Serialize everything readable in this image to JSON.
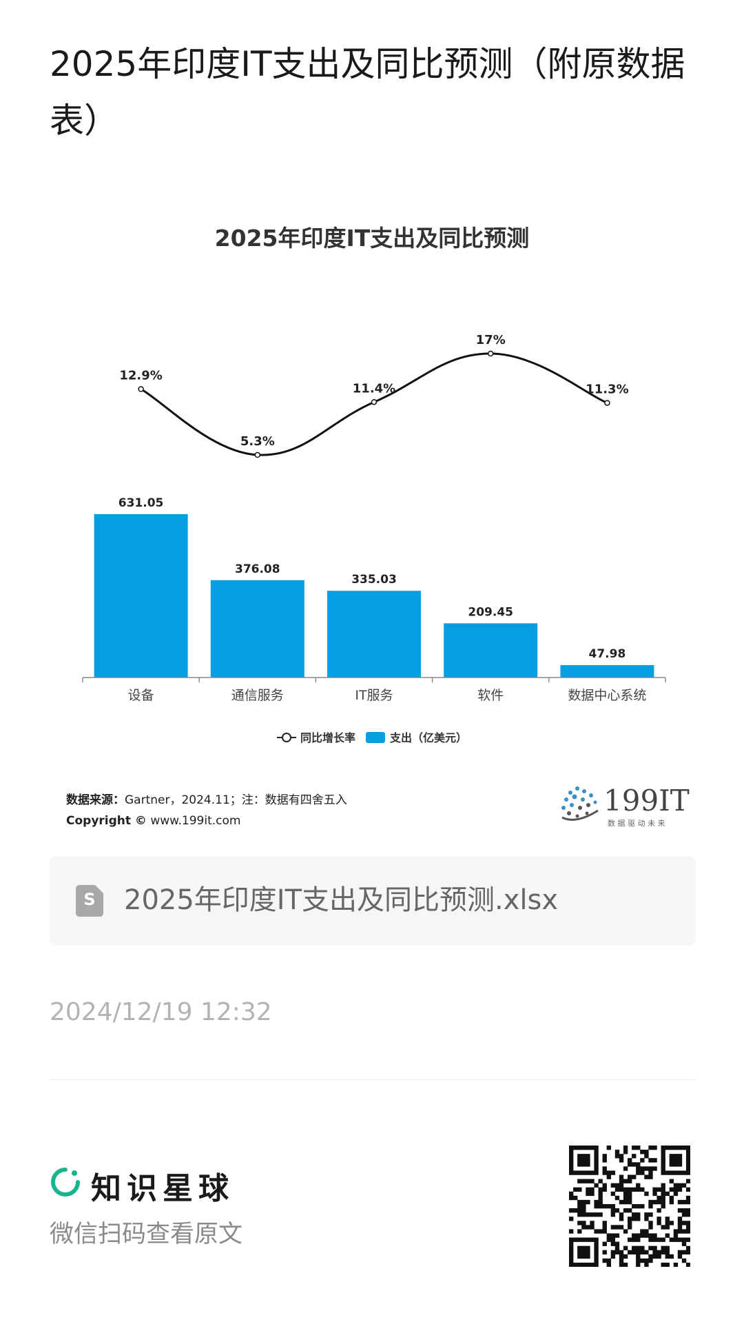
{
  "page": {
    "title": "2025年印度IT支出及同比预测（附原数据表）",
    "file_name": "2025年印度IT支出及同比预测.xlsx",
    "timestamp": "2024/12/19 12:32",
    "brand_name": "知识星球",
    "brand_subtitle": "微信扫码查看原文"
  },
  "source": {
    "label": "数据来源：",
    "text": "Gartner，2024.11；注：数据有四舍五入",
    "copyright_label": "Copyright ©",
    "copyright_url": "www.199it.com"
  },
  "logo": {
    "name": "199IT",
    "tagline": "数 据 驱 动 未 来"
  },
  "colors": {
    "bar": "#079fe4",
    "line": "#111111",
    "brand_green": "#19b48c"
  },
  "chart_data": {
    "type": "bar",
    "title": "2025年印度IT支出及同比预测",
    "categories": [
      "设备",
      "通信服务",
      "IT服务",
      "软件",
      "数据中心系统"
    ],
    "series": [
      {
        "name": "支出（亿美元）",
        "type": "bar",
        "values": [
          631.05,
          376.08,
          335.03,
          209.45,
          47.98
        ],
        "labels": [
          "631.05",
          "376.08",
          "335.03",
          "209.45",
          "47.98"
        ]
      },
      {
        "name": "同比增长率",
        "type": "line",
        "values": [
          12.9,
          5.3,
          11.4,
          17,
          11.3
        ],
        "labels": [
          "12.9%",
          "5.3%",
          "11.4%",
          "17%",
          "11.3%"
        ]
      }
    ],
    "legend_position": "bottom",
    "grid": false
  }
}
